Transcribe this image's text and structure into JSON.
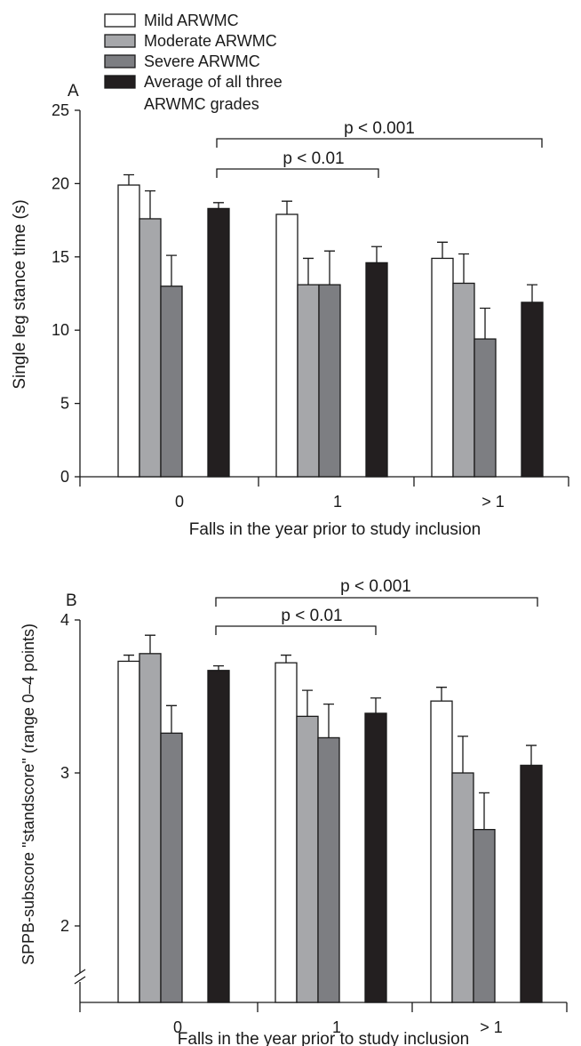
{
  "legend": [
    {
      "label": "Mild ARWMC",
      "color": "#ffffff"
    },
    {
      "label": "Moderate ARWMC",
      "color": "#a6a7aa"
    },
    {
      "label": "Severe ARWMC",
      "color": "#7d7e82"
    },
    {
      "label": "Average of all three",
      "label2": "ARWMC grades",
      "color": "#231f20"
    }
  ],
  "chart_data": [
    {
      "type": "bar",
      "panel_label": "A",
      "xlabel": "Falls in the year prior to study inclusion",
      "ylabel": "Single leg stance time (s)",
      "categories": [
        "0",
        "1",
        "> 1"
      ],
      "ylim": [
        0,
        25
      ],
      "yticks": [
        0,
        5,
        10,
        15,
        20,
        25
      ],
      "series": [
        {
          "name": "Mild ARWMC",
          "values": [
            19.9,
            17.9,
            14.9
          ],
          "errors": [
            0.7,
            0.9,
            1.1
          ]
        },
        {
          "name": "Moderate ARWMC",
          "values": [
            17.6,
            13.1,
            13.2
          ],
          "errors": [
            1.9,
            1.8,
            2.0
          ]
        },
        {
          "name": "Severe ARWMC",
          "values": [
            13.0,
            13.1,
            9.4
          ],
          "errors": [
            2.1,
            2.3,
            2.1
          ]
        },
        {
          "name": "Average of all three ARWMC grades",
          "values": [
            18.3,
            14.6,
            11.9
          ],
          "errors": [
            0.4,
            1.1,
            1.2
          ]
        }
      ],
      "annotations": [
        {
          "text": "p < 0.01",
          "from_category": "0",
          "to_category": "1",
          "level": 1
        },
        {
          "text": "p < 0.001",
          "from_category": "0",
          "to_category": "> 1",
          "level": 2
        }
      ]
    },
    {
      "type": "bar",
      "panel_label": "B",
      "xlabel": "Falls in the year prior to study inclusion",
      "ylabel": "SPPB-subscore \"standscore\" (range 0–4 points)",
      "categories": [
        "0",
        "1",
        "> 1"
      ],
      "ylim": [
        1.5,
        4
      ],
      "axis_break": true,
      "yticks": [
        2,
        3,
        4
      ],
      "series": [
        {
          "name": "Mild ARWMC",
          "values": [
            3.73,
            3.72,
            3.47
          ],
          "errors": [
            0.04,
            0.05,
            0.09
          ]
        },
        {
          "name": "Moderate ARWMC",
          "values": [
            3.78,
            3.37,
            3.0
          ],
          "errors": [
            0.12,
            0.17,
            0.24
          ]
        },
        {
          "name": "Severe ARWMC",
          "values": [
            3.26,
            3.23,
            2.63
          ],
          "errors": [
            0.18,
            0.22,
            0.24
          ]
        },
        {
          "name": "Average of all three ARWMC grades",
          "values": [
            3.67,
            3.39,
            3.05
          ],
          "errors": [
            0.03,
            0.1,
            0.13
          ]
        }
      ],
      "annotations": [
        {
          "text": "p < 0.01",
          "from_category": "0",
          "to_category": "1",
          "level": 1
        },
        {
          "text": "p < 0.001",
          "from_category": "0",
          "to_category": "> 1",
          "level": 2
        }
      ]
    }
  ]
}
